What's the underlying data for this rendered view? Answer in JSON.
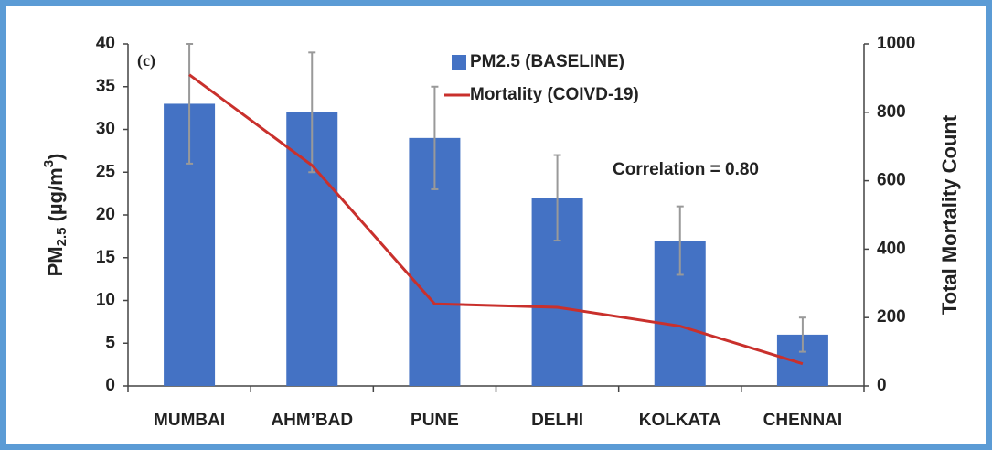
{
  "chart_data": {
    "type": "bar",
    "panel_label": "(c)",
    "ylabel_parts": [
      "PM",
      "2.5",
      " (µg/m",
      "3",
      ")"
    ],
    "y2label": "Total Mortality Count",
    "annotation": "Correlation = 0.80",
    "categories": [
      "MUMBAI",
      "AHM’BAD",
      "PUNE",
      "DELHI",
      "KOLKATA",
      "CHENNAI"
    ],
    "series": [
      {
        "name": "PM2.5 (BASELINE)",
        "type": "bar",
        "color": "#4472c4",
        "values": [
          33,
          32,
          29,
          22,
          17,
          6
        ],
        "errors": [
          7,
          7,
          6,
          5,
          4,
          2
        ],
        "error_color": "#999999"
      },
      {
        "name": "Mortality (COIVD-19)",
        "type": "line",
        "color": "#c9302c",
        "axis": "y2",
        "values": [
          910,
          645,
          240,
          230,
          175,
          65
        ]
      }
    ],
    "ylim": [
      0,
      40
    ],
    "yticks": [
      0,
      5,
      10,
      15,
      20,
      25,
      30,
      35,
      40
    ],
    "y2lim": [
      0,
      1000
    ],
    "y2ticks": [
      0,
      200,
      400,
      600,
      800,
      1000
    ]
  }
}
